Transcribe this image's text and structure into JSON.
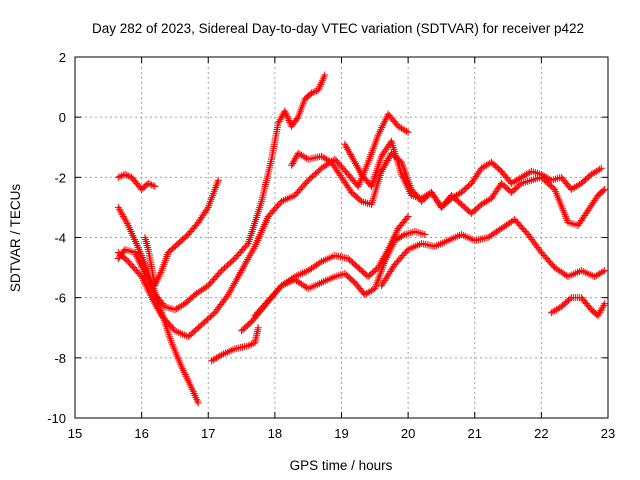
{
  "chart_data": {
    "type": "scatter",
    "title": "Day 282 of 2023, Sidereal Day-to-day VTEC variation (SDTVAR) for receiver p422",
    "xlabel": "GPS time / hours",
    "ylabel": "SDTVAR / TECUs",
    "xlim": [
      15,
      23
    ],
    "ylim": [
      -10,
      2
    ],
    "xticks": [
      "15",
      "16",
      "17",
      "18",
      "19",
      "20",
      "21",
      "22",
      "23"
    ],
    "yticks": [
      "-10",
      "-8",
      "-6",
      "-4",
      "-2",
      "0",
      "2"
    ],
    "grid": true,
    "legend": "none",
    "marker": "+",
    "color": "#ff0000",
    "series": [
      {
        "x": [
          15.65,
          15.8,
          16.0,
          16.15,
          16.3,
          16.45,
          16.6,
          16.75,
          16.85
        ],
        "y": [
          -3.0,
          -3.6,
          -4.6,
          -5.5,
          -6.5,
          -7.5,
          -8.3,
          -9.0,
          -9.5
        ]
      },
      {
        "x": [
          15.65,
          15.75,
          15.85,
          16.0,
          16.1,
          16.2
        ],
        "y": [
          -2.0,
          -1.9,
          -2.0,
          -2.4,
          -2.2,
          -2.3
        ]
      },
      {
        "x": [
          15.65,
          15.75,
          15.9,
          16.05,
          16.2,
          16.35,
          16.5,
          16.65,
          16.8,
          17.0,
          17.2,
          17.4,
          17.6,
          17.8,
          17.95,
          18.05,
          18.15,
          18.25,
          18.35,
          18.45,
          18.55,
          18.65,
          18.75
        ],
        "y": [
          -4.7,
          -4.4,
          -4.5,
          -5.2,
          -5.9,
          -6.3,
          -6.4,
          -6.2,
          -5.9,
          -5.6,
          -5.1,
          -4.7,
          -4.2,
          -2.8,
          -1.4,
          -0.2,
          0.2,
          -0.3,
          0.0,
          0.6,
          0.8,
          0.9,
          1.4
        ]
      },
      {
        "x": [
          16.05,
          16.1,
          16.2,
          16.3,
          16.4,
          16.55,
          16.7,
          16.85,
          17.0,
          17.1,
          17.15
        ],
        "y": [
          -4.0,
          -4.4,
          -5.6,
          -5.1,
          -4.5,
          -4.2,
          -3.9,
          -3.5,
          -3.0,
          -2.4,
          -2.1
        ]
      },
      {
        "x": [
          15.65,
          15.8,
          16.0,
          16.15,
          16.3,
          16.5,
          16.7,
          16.9,
          17.1,
          17.3,
          17.5,
          17.7,
          17.9,
          18.1,
          18.3,
          18.5,
          18.7,
          18.9,
          19.1,
          19.25,
          19.4,
          19.55,
          19.7,
          19.85,
          20.0
        ],
        "y": [
          -4.5,
          -4.8,
          -5.3,
          -6.0,
          -6.6,
          -7.1,
          -7.3,
          -6.9,
          -6.5,
          -5.9,
          -5.1,
          -4.3,
          -3.3,
          -2.8,
          -2.6,
          -2.1,
          -1.7,
          -1.4,
          -1.9,
          -2.3,
          -1.5,
          -0.6,
          0.1,
          -0.3,
          -0.5
        ]
      },
      {
        "x": [
          17.05,
          17.2,
          17.4,
          17.6,
          17.7,
          17.75
        ],
        "y": [
          -8.1,
          -7.9,
          -7.7,
          -7.6,
          -7.5,
          -7.0
        ]
      },
      {
        "x": [
          17.5,
          17.65,
          17.8,
          17.95,
          18.1,
          18.3,
          18.5,
          18.7,
          18.9,
          19.1,
          19.25,
          19.4,
          19.55,
          19.7,
          19.85,
          20.0
        ],
        "y": [
          -7.1,
          -6.8,
          -6.4,
          -6.0,
          -5.6,
          -5.3,
          -5.1,
          -4.8,
          -4.6,
          -4.7,
          -5.0,
          -5.3,
          -5.0,
          -4.4,
          -3.7,
          -3.3
        ]
      },
      {
        "x": [
          17.7,
          17.9,
          18.1,
          18.3,
          18.5,
          18.7,
          18.9,
          19.05,
          19.2,
          19.35,
          19.5,
          19.65,
          19.8,
          19.95,
          20.1,
          20.25
        ],
        "y": [
          -6.6,
          -6.1,
          -5.6,
          -5.4,
          -5.7,
          -5.5,
          -5.3,
          -5.2,
          -5.5,
          -5.9,
          -5.7,
          -4.8,
          -4.1,
          -3.9,
          -3.8,
          -3.9
        ]
      },
      {
        "x": [
          18.25,
          18.35,
          18.5,
          18.7,
          18.85,
          19.0,
          19.15,
          19.3,
          19.45,
          19.6,
          19.75,
          19.9,
          20.05,
          20.2,
          20.35,
          20.5,
          20.65,
          20.8,
          20.95,
          21.1,
          21.25,
          21.4,
          21.55,
          21.7,
          21.85,
          22.0,
          22.15,
          22.3,
          22.45,
          22.6,
          22.75,
          22.9
        ],
        "y": [
          -1.6,
          -1.2,
          -1.4,
          -1.3,
          -1.5,
          -2.0,
          -2.5,
          -2.8,
          -2.9,
          -1.8,
          -1.2,
          -1.5,
          -2.4,
          -2.8,
          -2.5,
          -3.0,
          -2.7,
          -2.5,
          -2.2,
          -1.7,
          -1.5,
          -1.8,
          -2.2,
          -2.0,
          -1.8,
          -1.9,
          -2.1,
          -2.0,
          -2.4,
          -2.2,
          -1.9,
          -1.7
        ]
      },
      {
        "x": [
          19.05,
          19.15,
          19.3,
          19.45,
          19.6,
          19.75,
          19.9,
          20.05,
          20.2,
          20.35,
          20.5,
          20.65,
          20.8,
          20.95,
          21.1,
          21.25,
          21.4,
          21.55,
          21.7,
          21.85,
          22.0,
          22.2,
          22.4,
          22.55,
          22.7,
          22.85,
          22.95
        ],
        "y": [
          -0.9,
          -1.3,
          -1.9,
          -2.3,
          -1.3,
          -0.8,
          -1.9,
          -2.6,
          -2.7,
          -2.5,
          -3.0,
          -2.6,
          -2.9,
          -3.2,
          -2.9,
          -2.7,
          -2.2,
          -2.5,
          -2.2,
          -2.1,
          -2.0,
          -2.4,
          -3.5,
          -3.6,
          -3.1,
          -2.6,
          -2.4
        ]
      },
      {
        "x": [
          19.6,
          19.8,
          20.0,
          20.2,
          20.4,
          20.6,
          20.8,
          21.0,
          21.2,
          21.4,
          21.6,
          21.8,
          22.0,
          22.2,
          22.4,
          22.6,
          22.8,
          22.95
        ],
        "y": [
          -5.6,
          -4.9,
          -4.4,
          -4.2,
          -4.3,
          -4.1,
          -3.9,
          -4.1,
          -4.0,
          -3.7,
          -3.4,
          -3.9,
          -4.5,
          -5.0,
          -5.3,
          -5.1,
          -5.3,
          -5.1
        ]
      },
      {
        "x": [
          22.15,
          22.3,
          22.45,
          22.6,
          22.75,
          22.85,
          22.95
        ],
        "y": [
          -6.5,
          -6.3,
          -6.0,
          -6.0,
          -6.4,
          -6.6,
          -6.2
        ]
      }
    ]
  }
}
